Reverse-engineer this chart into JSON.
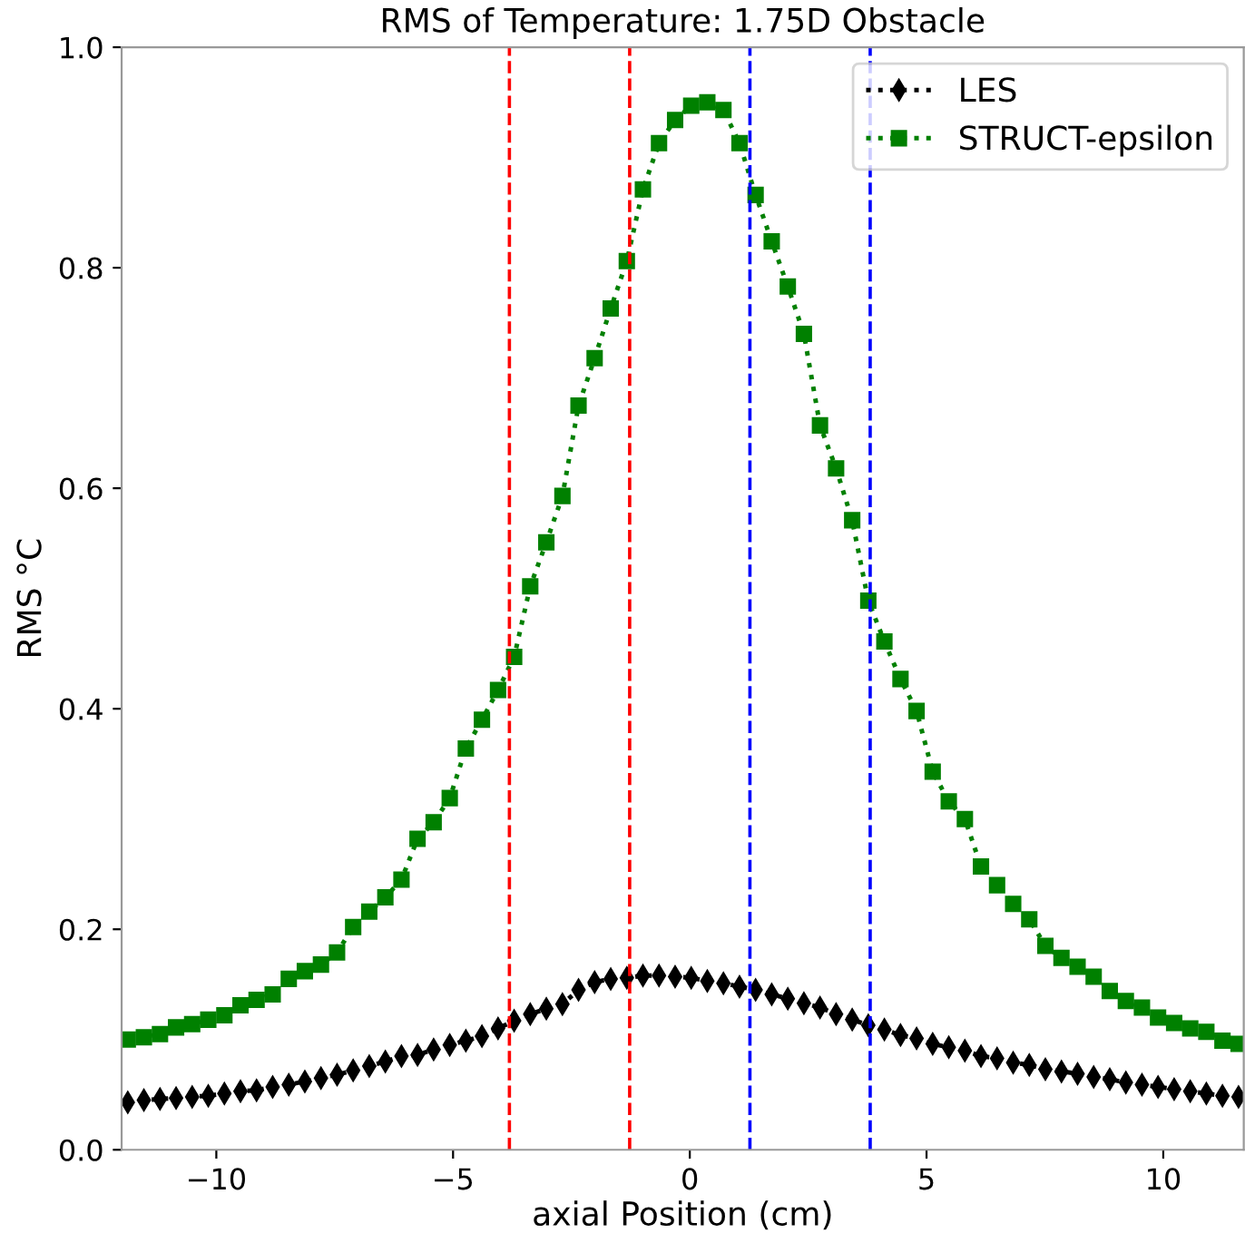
{
  "chart_data": {
    "type": "line",
    "title": "RMS of Temperature: 1.75D Obstacle",
    "xlabel": "axial Position (cm)",
    "ylabel": "RMS °C",
    "x": [
      -11.87,
      -11.53,
      -11.19,
      -10.85,
      -10.51,
      -10.17,
      -9.83,
      -9.49,
      -9.15,
      -8.81,
      -8.47,
      -8.13,
      -7.79,
      -7.45,
      -7.11,
      -6.77,
      -6.43,
      -6.09,
      -5.75,
      -5.41,
      -5.07,
      -4.73,
      -4.39,
      -4.05,
      -3.71,
      -3.37,
      -3.03,
      -2.69,
      -2.35,
      -2.01,
      -1.67,
      -1.33,
      -0.99,
      -0.65,
      -0.31,
      0.03,
      0.37,
      0.71,
      1.05,
      1.39,
      1.73,
      2.07,
      2.41,
      2.75,
      3.09,
      3.43,
      3.77,
      4.11,
      4.45,
      4.79,
      5.13,
      5.47,
      5.81,
      6.15,
      6.49,
      6.83,
      7.17,
      7.51,
      7.85,
      8.19,
      8.53,
      8.87,
      9.21,
      9.55,
      9.89,
      10.23,
      10.57,
      10.91,
      11.25,
      11.59
    ],
    "series": [
      {
        "name": "LES",
        "color": "#000000",
        "marker": "diamond",
        "line_style": "dotted",
        "values": [
          0.043,
          0.045,
          0.046,
          0.047,
          0.048,
          0.049,
          0.051,
          0.053,
          0.054,
          0.057,
          0.059,
          0.062,
          0.065,
          0.068,
          0.072,
          0.076,
          0.08,
          0.085,
          0.086,
          0.091,
          0.095,
          0.099,
          0.103,
          0.11,
          0.117,
          0.123,
          0.128,
          0.132,
          0.145,
          0.152,
          0.155,
          0.156,
          0.158,
          0.158,
          0.157,
          0.156,
          0.153,
          0.151,
          0.148,
          0.145,
          0.141,
          0.137,
          0.133,
          0.129,
          0.123,
          0.118,
          0.113,
          0.109,
          0.104,
          0.101,
          0.096,
          0.093,
          0.09,
          0.085,
          0.083,
          0.079,
          0.077,
          0.073,
          0.071,
          0.069,
          0.066,
          0.064,
          0.061,
          0.059,
          0.057,
          0.055,
          0.053,
          0.051,
          0.049,
          0.048
        ]
      },
      {
        "name": "STRUCT-epsilon",
        "color": "#008000",
        "marker": "square",
        "line_style": "dotted",
        "values": [
          0.1,
          0.102,
          0.105,
          0.111,
          0.114,
          0.118,
          0.122,
          0.131,
          0.136,
          0.141,
          0.155,
          0.162,
          0.168,
          0.179,
          0.202,
          0.216,
          0.229,
          0.245,
          0.282,
          0.297,
          0.319,
          0.364,
          0.39,
          0.417,
          0.447,
          0.511,
          0.551,
          0.593,
          0.675,
          0.718,
          0.763,
          0.806,
          0.871,
          0.913,
          0.934,
          0.947,
          0.95,
          0.943,
          0.913,
          0.866,
          0.824,
          0.783,
          0.74,
          0.657,
          0.618,
          0.571,
          0.498,
          0.461,
          0.427,
          0.398,
          0.343,
          0.316,
          0.3,
          0.257,
          0.24,
          0.223,
          0.209,
          0.185,
          0.174,
          0.166,
          0.157,
          0.144,
          0.135,
          0.129,
          0.12,
          0.115,
          0.11,
          0.107,
          0.099,
          0.096
        ]
      }
    ],
    "xlim": [
      -12,
      11.7
    ],
    "xticks": [
      {
        "value": -10,
        "label": "−10"
      },
      {
        "value": -5,
        "label": "−5"
      },
      0,
      5,
      10
    ],
    "ylim": [
      0,
      1.0
    ],
    "yticks": [
      {
        "value": 0,
        "label": "0.0"
      },
      0.2,
      0.4,
      0.6,
      0.8,
      {
        "value": 1.0,
        "label": "1.0"
      }
    ],
    "ref_lines": [
      {
        "axis": "x",
        "value": -3.81,
        "color": "#ff0000",
        "line_style": "dashed"
      },
      {
        "axis": "x",
        "value": -1.27,
        "color": "#ff0000",
        "line_style": "dashed"
      },
      {
        "axis": "x",
        "value": 1.27,
        "color": "#0000ff",
        "line_style": "dashed"
      },
      {
        "axis": "x",
        "value": 3.81,
        "color": "#0000ff",
        "line_style": "dashed"
      }
    ],
    "legend": "top right",
    "grid": false
  }
}
